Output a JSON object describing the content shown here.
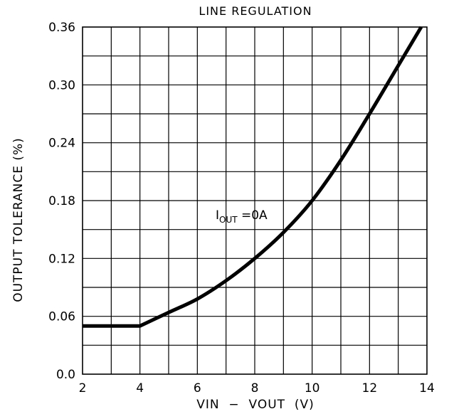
{
  "chart_data": {
    "type": "line",
    "title": "LINE REGULATION",
    "xlabel": "VIN  −  VOUT  (V)",
    "ylabel": "OUTPUT TOLERANCE (%)",
    "xlim": [
      2,
      14
    ],
    "ylim": [
      0,
      0.36
    ],
    "x_ticks": [
      2,
      4,
      6,
      8,
      10,
      12,
      14
    ],
    "x_tick_labels": [
      "2",
      "4",
      "6",
      "8",
      "10",
      "12",
      "14"
    ],
    "y_ticks": [
      0,
      0.06,
      0.12,
      0.18,
      0.24,
      0.3,
      0.36
    ],
    "y_tick_labels": [
      "0.0",
      "0.06",
      "0.12",
      "0.18",
      "0.24",
      "0.30",
      "0.36"
    ],
    "x_minor_step": 1,
    "y_minor_step": 0.03,
    "grid": true,
    "annotation": {
      "main": "I",
      "sub": "OUT",
      "rest": " =0A"
    },
    "series": [
      {
        "x": [
          2,
          4,
          5,
          6,
          7,
          8,
          9,
          10,
          11,
          12,
          13,
          13.8
        ],
        "y": [
          0.05,
          0.05,
          0.064,
          0.078,
          0.097,
          0.12,
          0.147,
          0.18,
          0.222,
          0.27,
          0.32,
          0.36
        ]
      }
    ]
  }
}
